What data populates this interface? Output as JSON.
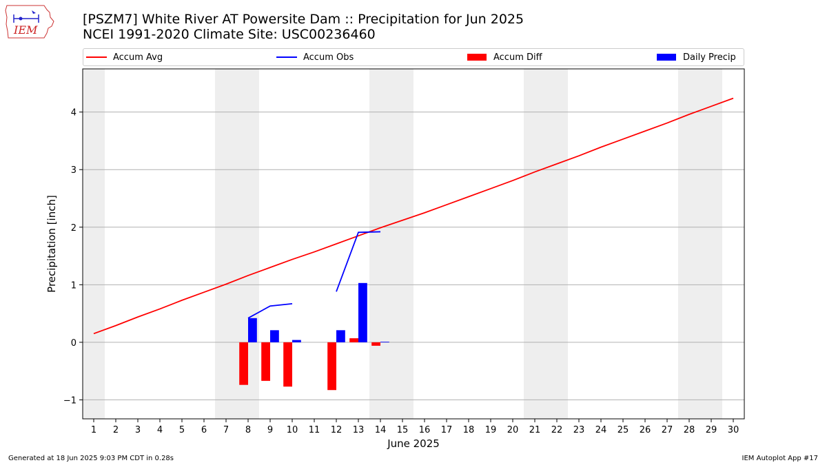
{
  "logo": {
    "text": "IEM"
  },
  "title": {
    "line1": "[PSZM7] White River  AT Powersite Dam :: Precipitation for Jun 2025",
    "line2": "NCEI 1991-2020 Climate Site: USC00236460"
  },
  "footer": {
    "left": "Generated at 18 Jun 2025 9:03 PM CDT in 0.28s",
    "right": "IEM Autoplot App #17"
  },
  "chart_data": {
    "type": "bar",
    "xlabel": "June 2025",
    "ylabel": "Precipitation [inch]",
    "xlim": [
      0.5,
      30.5
    ],
    "ylim": [
      -1.33,
      4.75
    ],
    "yticks": [
      -1,
      0,
      1,
      2,
      3,
      4
    ],
    "ytick_labels": [
      "−1",
      "0",
      "1",
      "2",
      "3",
      "4"
    ],
    "days": [
      1,
      2,
      3,
      4,
      5,
      6,
      7,
      8,
      9,
      10,
      11,
      12,
      13,
      14,
      15,
      16,
      17,
      18,
      19,
      20,
      21,
      22,
      23,
      24,
      25,
      26,
      27,
      28,
      29,
      30
    ],
    "weekend_shading": [
      [
        0.5,
        1.5
      ],
      [
        6.5,
        8.5
      ],
      [
        13.5,
        15.5
      ],
      [
        20.5,
        22.5
      ],
      [
        27.5,
        29.5
      ]
    ],
    "grid": "horizontal",
    "legend": {
      "placement": "top",
      "colors": {
        "Accum Avg": "#ff0000",
        "Accum Obs": "#0000ff",
        "Accum Diff": "#ff0000",
        "Daily Precip": "#0000ff"
      }
    },
    "series": [
      {
        "name": "Accum Avg",
        "kind": "line",
        "color": "#ff0000",
        "x": [
          1,
          2,
          3,
          4,
          5,
          6,
          7,
          8,
          9,
          10,
          11,
          12,
          13,
          14,
          15,
          16,
          17,
          18,
          19,
          20,
          21,
          22,
          23,
          24,
          25,
          26,
          27,
          28,
          29,
          30
        ],
        "values": [
          0.15,
          0.29,
          0.44,
          0.58,
          0.73,
          0.87,
          1.01,
          1.16,
          1.3,
          1.44,
          1.57,
          1.71,
          1.85,
          1.99,
          2.12,
          2.25,
          2.39,
          2.53,
          2.67,
          2.81,
          2.96,
          3.1,
          3.24,
          3.39,
          3.53,
          3.67,
          3.81,
          3.96,
          4.1,
          4.24
        ]
      },
      {
        "name": "Accum Obs",
        "kind": "line",
        "color": "#0000ff",
        "segments": [
          {
            "x": [
              8,
              9,
              10
            ],
            "values": [
              0.42,
              0.63,
              0.67
            ]
          },
          {
            "x": [
              12,
              13,
              14
            ],
            "values": [
              0.88,
              1.91,
              1.92
            ]
          }
        ]
      },
      {
        "name": "Accum Diff",
        "kind": "bar",
        "color": "#ff0000",
        "x": [
          8,
          9,
          10,
          12,
          13,
          14
        ],
        "values": [
          -0.74,
          -0.67,
          -0.77,
          -0.83,
          0.07,
          -0.06
        ]
      },
      {
        "name": "Daily Precip",
        "kind": "bar",
        "color": "#0000ff",
        "x": [
          8,
          9,
          10,
          12,
          13,
          14
        ],
        "values": [
          0.42,
          0.21,
          0.04,
          0.21,
          1.03,
          0.01
        ]
      }
    ]
  }
}
